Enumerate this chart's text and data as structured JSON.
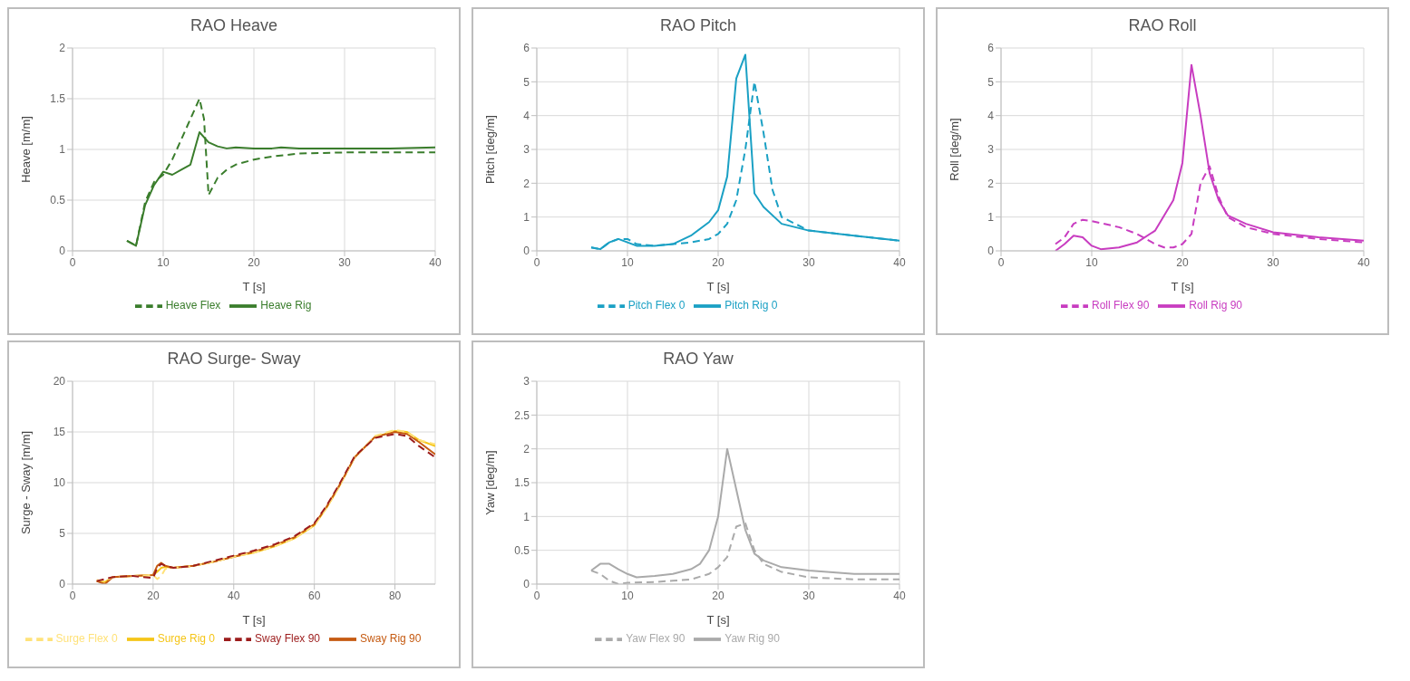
{
  "chart_data": [
    {
      "type": "line",
      "title": "RAO Heave",
      "xlabel": "T [s]",
      "ylabel": "Heave [m/m]",
      "xlim": [
        0,
        40
      ],
      "xticks": [
        0,
        10,
        20,
        30,
        40
      ],
      "ylim": [
        0,
        2
      ],
      "yticks": [
        0,
        0.5,
        1,
        1.5,
        2
      ],
      "grid": true,
      "legend": "bottom",
      "marker": "none",
      "series": [
        {
          "name": "Heave Rig",
          "color": "#3a7d2c",
          "line_style": "solid",
          "x": [
            6,
            7,
            8,
            9,
            10,
            11,
            12,
            13,
            14,
            15,
            16,
            17,
            18,
            20,
            22,
            23,
            25,
            30,
            35,
            40
          ],
          "values": [
            0.1,
            0.05,
            0.45,
            0.65,
            0.78,
            0.75,
            0.8,
            0.85,
            1.17,
            1.07,
            1.03,
            1.01,
            1.02,
            1.01,
            1.01,
            1.02,
            1.01,
            1.01,
            1.01,
            1.02
          ]
        },
        {
          "name": "Heave Flex",
          "color": "#3a7d2c",
          "line_style": "dashed",
          "x": [
            6,
            7,
            8,
            9,
            10,
            11,
            12,
            13,
            14,
            14.5,
            15,
            16,
            17,
            18,
            20,
            22,
            25,
            30,
            35,
            40
          ],
          "values": [
            0.1,
            0.05,
            0.48,
            0.68,
            0.75,
            0.9,
            1.1,
            1.3,
            1.5,
            1.3,
            0.55,
            0.72,
            0.8,
            0.85,
            0.9,
            0.93,
            0.96,
            0.97,
            0.97,
            0.97
          ]
        }
      ]
    },
    {
      "type": "line",
      "title": "RAO Pitch",
      "xlabel": "T [s]",
      "ylabel": "Pitch [deg/m]",
      "xlim": [
        0,
        40
      ],
      "xticks": [
        0,
        10,
        20,
        30,
        40
      ],
      "ylim": [
        0,
        6
      ],
      "yticks": [
        0,
        1,
        2,
        3,
        4,
        5,
        6
      ],
      "grid": true,
      "legend": "bottom",
      "marker": "none",
      "series": [
        {
          "name": "Pitch Rig 0",
          "color": "#1aa0c4",
          "line_style": "solid",
          "x": [
            6,
            7,
            8,
            9,
            10,
            11,
            13,
            15,
            17,
            19,
            20,
            21,
            22,
            23,
            24,
            25,
            27,
            30,
            35,
            40
          ],
          "values": [
            0.1,
            0.05,
            0.25,
            0.35,
            0.25,
            0.15,
            0.15,
            0.2,
            0.45,
            0.85,
            1.2,
            2.2,
            5.1,
            5.8,
            1.7,
            1.3,
            0.8,
            0.6,
            0.45,
            0.3
          ]
        },
        {
          "name": "Pitch Flex 0",
          "color": "#1aa0c4",
          "line_style": "dashed",
          "x": [
            6,
            7,
            8,
            9,
            10,
            11,
            13,
            15,
            17,
            19,
            20,
            21,
            22,
            23,
            24,
            25,
            26,
            27,
            30,
            35,
            40
          ],
          "values": [
            0.1,
            0.05,
            0.25,
            0.35,
            0.35,
            0.2,
            0.15,
            0.2,
            0.25,
            0.35,
            0.5,
            0.8,
            1.5,
            3.0,
            5.0,
            3.5,
            1.8,
            1.0,
            0.6,
            0.45,
            0.3
          ]
        }
      ]
    },
    {
      "type": "line",
      "title": "RAO Roll",
      "xlabel": "T [s]",
      "ylabel": "Roll [deg/m]",
      "xlim": [
        0,
        40
      ],
      "xticks": [
        0,
        10,
        20,
        30,
        40
      ],
      "ylim": [
        0,
        6
      ],
      "yticks": [
        0,
        1,
        2,
        3,
        4,
        5,
        6
      ],
      "grid": true,
      "legend": "bottom",
      "marker": "none",
      "series": [
        {
          "name": "Roll Rig 90",
          "color": "#c83cc0",
          "line_style": "solid",
          "x": [
            6,
            7,
            8,
            9,
            10,
            11,
            13,
            15,
            17,
            19,
            20,
            21,
            22,
            23,
            24,
            25,
            27,
            30,
            35,
            40
          ],
          "values": [
            0,
            0.2,
            0.45,
            0.4,
            0.15,
            0.05,
            0.1,
            0.25,
            0.6,
            1.5,
            2.6,
            5.5,
            4.0,
            2.3,
            1.5,
            1.05,
            0.8,
            0.55,
            0.4,
            0.3
          ]
        },
        {
          "name": "Roll Flex 90",
          "color": "#c83cc0",
          "line_style": "dashed",
          "x": [
            6,
            7,
            8,
            9,
            10,
            13,
            15,
            17,
            18,
            19,
            20,
            21,
            22,
            23,
            24,
            25,
            27,
            30,
            35,
            40
          ],
          "values": [
            0.2,
            0.4,
            0.8,
            0.92,
            0.88,
            0.7,
            0.5,
            0.2,
            0.1,
            0.1,
            0.2,
            0.5,
            2.0,
            2.5,
            1.6,
            1.0,
            0.7,
            0.5,
            0.35,
            0.25
          ]
        }
      ]
    },
    {
      "type": "line",
      "title": "RAO Surge- Sway",
      "xlabel": "T [s]",
      "ylabel": "Surge - Sway [m/m]",
      "xlim": [
        0,
        90
      ],
      "xticks": [
        0,
        20,
        40,
        60,
        80
      ],
      "ylim": [
        0,
        20
      ],
      "yticks": [
        0,
        5,
        10,
        15,
        20
      ],
      "grid": true,
      "legend": "bottom",
      "marker": "none",
      "series": [
        {
          "name": "Surge Rig 0",
          "color": "#f5c518",
          "line_style": "solid",
          "x": [
            6,
            8,
            10,
            15,
            20,
            21,
            22,
            23,
            25,
            30,
            35,
            40,
            45,
            50,
            55,
            60,
            63,
            66,
            70,
            75,
            80,
            83,
            86,
            90
          ],
          "values": [
            0.3,
            0.2,
            0.7,
            0.8,
            0.9,
            1.2,
            1.6,
            1.7,
            1.6,
            1.8,
            2.2,
            2.7,
            3.1,
            3.7,
            4.5,
            5.8,
            7.5,
            9.5,
            12.5,
            14.5,
            15.1,
            15.0,
            14.2,
            13.6
          ]
        },
        {
          "name": "Sway Rig 90",
          "color": "#c55a11",
          "line_style": "solid",
          "x": [
            6,
            8,
            10,
            15,
            20,
            21,
            22,
            23,
            25,
            30,
            35,
            40,
            45,
            50,
            55,
            60,
            63,
            66,
            70,
            75,
            80,
            83,
            86,
            90
          ],
          "values": [
            0.3,
            0.0,
            0.7,
            0.8,
            0.9,
            1.8,
            2.1,
            1.8,
            1.6,
            1.8,
            2.2,
            2.7,
            3.2,
            3.8,
            4.6,
            5.9,
            7.6,
            9.6,
            12.5,
            14.5,
            15.0,
            14.8,
            14.0,
            12.8
          ]
        },
        {
          "name": "Surge Flex 0",
          "color": "#ffe27a",
          "line_style": "dashed",
          "x": [
            6,
            8,
            10,
            15,
            20,
            21,
            22,
            23,
            25,
            30,
            35,
            40,
            45,
            50,
            55,
            60,
            63,
            66,
            70,
            75,
            80,
            83,
            86,
            90
          ],
          "values": [
            0.4,
            0.3,
            0.7,
            0.8,
            0.9,
            0.5,
            0.8,
            1.5,
            1.6,
            1.8,
            2.2,
            2.7,
            3.1,
            3.7,
            4.5,
            5.8,
            7.5,
            9.5,
            12.5,
            14.6,
            15.2,
            15.0,
            14.2,
            13.8
          ]
        },
        {
          "name": "Sway Flex 90",
          "color": "#9c1c1c",
          "line_style": "dashed",
          "x": [
            6,
            8,
            10,
            15,
            20,
            21,
            22,
            23,
            25,
            30,
            35,
            40,
            45,
            50,
            55,
            60,
            63,
            66,
            70,
            75,
            80,
            83,
            86,
            90
          ],
          "values": [
            0.3,
            0.5,
            0.7,
            0.8,
            0.6,
            1.6,
            2.0,
            1.8,
            1.6,
            1.8,
            2.3,
            2.8,
            3.3,
            3.9,
            4.7,
            6.0,
            7.7,
            9.7,
            12.6,
            14.4,
            14.8,
            14.6,
            13.6,
            12.5
          ]
        }
      ]
    },
    {
      "type": "line",
      "title": "RAO Yaw",
      "xlabel": "T [s]",
      "ylabel": "Yaw [deg/m]",
      "xlim": [
        0,
        40
      ],
      "xticks": [
        0,
        10,
        20,
        30,
        40
      ],
      "ylim": [
        0,
        3
      ],
      "yticks": [
        0,
        0.5,
        1,
        1.5,
        2,
        2.5,
        3
      ],
      "grid": true,
      "legend": "bottom",
      "marker": "none",
      "series": [
        {
          "name": "Yaw Rig 90",
          "color": "#aaaaaa",
          "line_style": "solid",
          "x": [
            6,
            7,
            8,
            9,
            10,
            11,
            13,
            15,
            17,
            18,
            19,
            20,
            21,
            22,
            23,
            24,
            25,
            27,
            30,
            35,
            40
          ],
          "values": [
            0.2,
            0.3,
            0.3,
            0.22,
            0.15,
            0.1,
            0.12,
            0.15,
            0.22,
            0.3,
            0.5,
            1.0,
            2.0,
            1.4,
            0.8,
            0.45,
            0.35,
            0.25,
            0.2,
            0.15,
            0.15
          ]
        },
        {
          "name": "Yaw Flex 90",
          "color": "#aaaaaa",
          "line_style": "dashed",
          "x": [
            6,
            7,
            8,
            9,
            10,
            13,
            15,
            17,
            19,
            20,
            21,
            22,
            23,
            24,
            25,
            27,
            30,
            35,
            40
          ],
          "values": [
            0.2,
            0.15,
            0.05,
            0.0,
            0.02,
            0.03,
            0.05,
            0.07,
            0.15,
            0.25,
            0.4,
            0.85,
            0.9,
            0.5,
            0.3,
            0.18,
            0.1,
            0.07,
            0.07
          ]
        }
      ]
    }
  ]
}
